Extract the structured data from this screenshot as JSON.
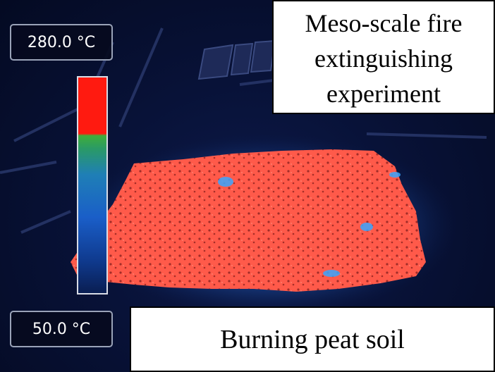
{
  "scale": {
    "max_label": "280.0 °C",
    "min_label": "50.0 °C",
    "colors": [
      "#ff1a10",
      "#3fae3a",
      "#1f7fb6",
      "#1a5ec8",
      "#0a1e52"
    ]
  },
  "title": {
    "lines": [
      "Meso-scale fire",
      "extinguishing",
      "experiment"
    ]
  },
  "subject": {
    "label": "Burning peat soil"
  },
  "palette": {
    "hot": "#ff5a4a",
    "background": "#061033"
  }
}
